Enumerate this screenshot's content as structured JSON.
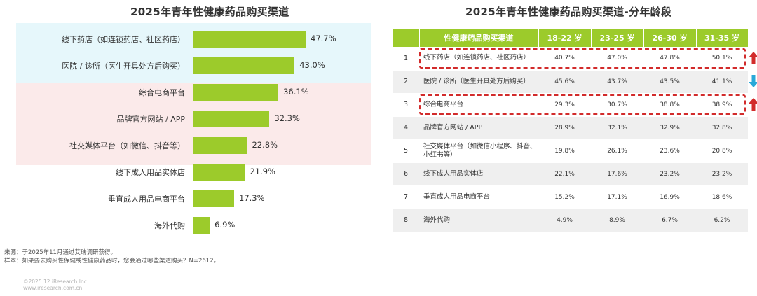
{
  "left_chart": {
    "title": "2025年青年性健康药品购买渠道"
  },
  "chart_data": [
    {
      "type": "bar",
      "title": "2025年青年性健康药品购买渠道",
      "orientation": "horizontal",
      "xlim": [
        0,
        55
      ],
      "categories": [
        "线下药店（如连锁药店、社区药店）",
        "医院 / 诊所（医生开具处方后购买）",
        "综合电商平台",
        "品牌官方网站 / APP",
        "社交媒体平台（如微信、抖音等）",
        "线下成人用品实体店",
        "垂直成人用品电商平台",
        "海外代购"
      ],
      "values": [
        47.7,
        43.0,
        36.1,
        32.3,
        22.8,
        21.9,
        17.3,
        6.9
      ],
      "value_labels": [
        "47.7%",
        "43.0%",
        "36.1%",
        "32.3%",
        "22.8%",
        "21.9%",
        "17.3%",
        "6.9%"
      ],
      "bar_color": "#9ccb2b",
      "highlight_bands": [
        {
          "rows": [
            0,
            1
          ],
          "color": "#e6f7fb"
        },
        {
          "rows": [
            2,
            3,
            4
          ],
          "color": "#fbeaea"
        }
      ]
    },
    {
      "type": "table",
      "title": "2025年青年性健康药品购买渠道-分年龄段",
      "header": [
        "",
        "性健康药品购买渠道",
        "18-22 岁",
        "23-25 岁",
        "26-30 岁",
        "31-35 岁"
      ],
      "rows": [
        {
          "idx": "1",
          "name": "线下药店（如连锁药店、社区药店）",
          "values": [
            "40.7%",
            "47.0%",
            "47.8%",
            "50.1%"
          ],
          "highlight": true,
          "trend": "up"
        },
        {
          "idx": "2",
          "name": "医院 / 诊所（医生开具处方后购买）",
          "values": [
            "45.6%",
            "43.7%",
            "43.5%",
            "41.1%"
          ],
          "highlight": false,
          "trend": "down"
        },
        {
          "idx": "3",
          "name": "综合电商平台",
          "values": [
            "29.3%",
            "30.7%",
            "38.8%",
            "38.9%"
          ],
          "highlight": true,
          "trend": "up"
        },
        {
          "idx": "4",
          "name": "品牌官方网站 / APP",
          "values": [
            "28.9%",
            "32.1%",
            "32.9%",
            "32.8%"
          ],
          "highlight": false,
          "trend": ""
        },
        {
          "idx": "5",
          "name": "社交媒体平台（如微信小程序、抖音、小红书等）",
          "values": [
            "19.8%",
            "26.1%",
            "23.6%",
            "20.8%"
          ],
          "highlight": false,
          "trend": ""
        },
        {
          "idx": "6",
          "name": "线下成人用品实体店",
          "values": [
            "22.1%",
            "17.6%",
            "23.2%",
            "23.2%"
          ],
          "highlight": false,
          "trend": ""
        },
        {
          "idx": "7",
          "name": "垂直成人用品电商平台",
          "values": [
            "15.2%",
            "17.1%",
            "16.9%",
            "18.6%"
          ],
          "highlight": false,
          "trend": ""
        },
        {
          "idx": "8",
          "name": "海外代购",
          "values": [
            "4.9%",
            "8.9%",
            "6.7%",
            "6.2%"
          ],
          "highlight": false,
          "trend": ""
        }
      ],
      "header_color": "#9ccb2b",
      "up_arrow_color": "#d22b2b",
      "down_arrow_color": "#2aa8d8"
    }
  ],
  "right_table": {
    "title": "2025年青年性健康药品购买渠道-分年龄段"
  },
  "footnote": {
    "source": "来源：于2025年11月通过艾瑞调研获得。",
    "sample": "样本：如果要去购买性保健或性健康药品时，您会通过哪些渠道购买？N=2612。"
  },
  "copyright": {
    "line1": "©2025.12 iResearch Inc",
    "line2": "www.iresearch.com.cn"
  }
}
